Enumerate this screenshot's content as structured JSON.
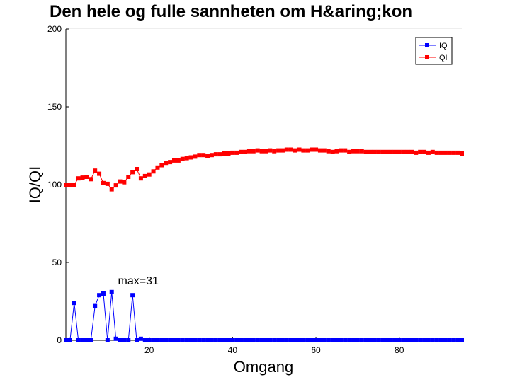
{
  "chart_data": {
    "type": "line",
    "title": "Den hele og fulle sannheten om H&aring;kon",
    "xlabel": "Omgang",
    "ylabel": "IQ/QI",
    "xlim": [
      0,
      95
    ],
    "ylim": [
      0,
      200
    ],
    "xticks": [
      20,
      40,
      60,
      80
    ],
    "yticks": [
      0,
      50,
      100,
      150,
      200
    ],
    "grid": true,
    "legend_position": "top-right",
    "annotation": {
      "text": "max=31",
      "x": 12.5,
      "y": 36
    },
    "series": [
      {
        "name": "IQ",
        "color": "#0000ff",
        "x": [
          0,
          1,
          2,
          3,
          4,
          5,
          6,
          7,
          8,
          9,
          10,
          11,
          12,
          13,
          14,
          15,
          16,
          17,
          18,
          19,
          20,
          21,
          22,
          23,
          24,
          25,
          26,
          27,
          28,
          29,
          30,
          31,
          32,
          33,
          34,
          35,
          36,
          37,
          38,
          39,
          40,
          41,
          42,
          43,
          44,
          45,
          46,
          47,
          48,
          49,
          50,
          51,
          52,
          53,
          54,
          55,
          56,
          57,
          58,
          59,
          60,
          61,
          62,
          63,
          64,
          65,
          66,
          67,
          68,
          69,
          70,
          71,
          72,
          73,
          74,
          75,
          76,
          77,
          78,
          79,
          80,
          81,
          82,
          83,
          84,
          85,
          86,
          87,
          88,
          89,
          90,
          91,
          92,
          93,
          94,
          95
        ],
        "values": [
          0,
          0,
          24,
          0,
          0,
          0,
          0,
          22,
          29,
          30,
          0,
          31,
          1,
          0,
          0,
          0,
          29,
          0,
          1,
          0,
          0,
          0,
          0,
          0,
          0,
          0,
          0,
          0,
          0,
          0,
          0,
          0,
          0,
          0,
          0,
          0,
          0,
          0,
          0,
          0,
          0,
          0,
          0,
          0,
          0,
          0,
          0,
          0,
          0,
          0,
          0,
          0,
          0,
          0,
          0,
          0,
          0,
          0,
          0,
          0,
          0,
          0,
          0,
          0,
          0,
          0,
          0,
          0,
          0,
          0,
          0,
          0,
          0,
          0,
          0,
          0,
          0,
          0,
          0,
          0,
          0,
          0,
          0,
          0,
          0,
          0,
          0,
          0,
          0,
          0,
          0,
          0,
          0,
          0,
          0,
          0
        ]
      },
      {
        "name": "QI",
        "color": "#ff0000",
        "x": [
          0,
          1,
          2,
          3,
          4,
          5,
          6,
          7,
          8,
          9,
          10,
          11,
          12,
          13,
          14,
          15,
          16,
          17,
          18,
          19,
          20,
          21,
          22,
          23,
          24,
          25,
          26,
          27,
          28,
          29,
          30,
          31,
          32,
          33,
          34,
          35,
          36,
          37,
          38,
          39,
          40,
          41,
          42,
          43,
          44,
          45,
          46,
          47,
          48,
          49,
          50,
          51,
          52,
          53,
          54,
          55,
          56,
          57,
          58,
          59,
          60,
          61,
          62,
          63,
          64,
          65,
          66,
          67,
          68,
          69,
          70,
          71,
          72,
          73,
          74,
          75,
          76,
          77,
          78,
          79,
          80,
          81,
          82,
          83,
          84,
          85,
          86,
          87,
          88,
          89,
          90,
          91,
          92,
          93,
          94,
          95
        ],
        "values": [
          100,
          100,
          100,
          104,
          104.5,
          105,
          103.5,
          109,
          107,
          101,
          100.5,
          97,
          99.5,
          102,
          101.5,
          105,
          108,
          110,
          104,
          105.5,
          106.5,
          108.5,
          111,
          112.5,
          114,
          114.5,
          115.5,
          115.5,
          116.5,
          117,
          117.5,
          118,
          119,
          119,
          118.5,
          119,
          119.5,
          119.5,
          120,
          120,
          120.5,
          120.5,
          121,
          121,
          121.5,
          121.5,
          122,
          121.5,
          121.5,
          122,
          121.5,
          122,
          122,
          122.5,
          122.5,
          122,
          122.5,
          122,
          122,
          122.5,
          122.5,
          122,
          122,
          121.5,
          121,
          121.5,
          122,
          122,
          121,
          121.5,
          121.5,
          121.5,
          121,
          121,
          121,
          121,
          121,
          121,
          121,
          121,
          121,
          121,
          121,
          121,
          120.5,
          121,
          121,
          120.5,
          121,
          120.5,
          120.5,
          120.5,
          120.5,
          120.5,
          120.5,
          120
        ]
      }
    ]
  }
}
